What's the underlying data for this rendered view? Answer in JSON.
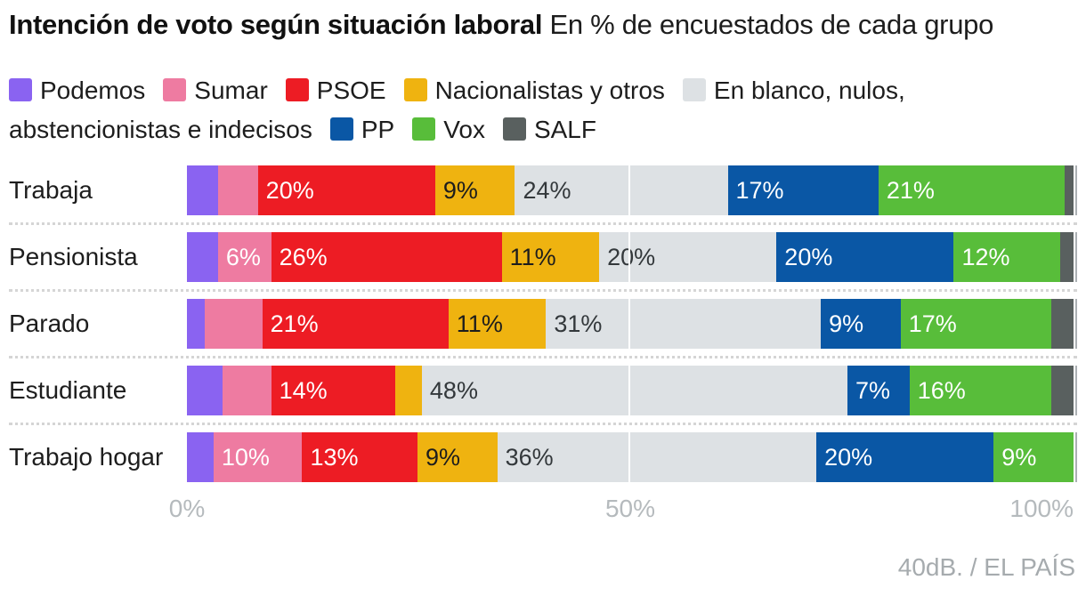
{
  "title": {
    "bold": "Intención de voto según situación laboral",
    "regular": "En % de encuestados de cada grupo"
  },
  "source": "40dB. / EL PAÍS",
  "chart_data": {
    "type": "bar",
    "variant": "horizontal-stacked",
    "title": "Intención de voto según situación laboral",
    "subtitle": "En % de encuestados de cada grupo",
    "xlim": [
      0,
      100
    ],
    "x_ticks": [
      "0%",
      "50%",
      "100%"
    ],
    "legend_position": "top",
    "grid": "white line at 50%, gray edge line at 100%, dotted separators between rows",
    "categories": [
      "Trabaja",
      "Pensionista",
      "Parado",
      "Estudiante",
      "Trabajo hogar"
    ],
    "series": [
      {
        "key": "podemos",
        "name": "Podemos",
        "color": "#8a63f1",
        "label_color": "#ffffff",
        "values": [
          3.5,
          3.5,
          2,
          4,
          3
        ],
        "labels": [
          "",
          "",
          "",
          "",
          ""
        ]
      },
      {
        "key": "sumar",
        "name": "Sumar",
        "color": "#ee7ba1",
        "label_color": "#ffffff",
        "values": [
          4.5,
          6,
          6.5,
          5.5,
          10
        ],
        "labels": [
          "",
          "6%",
          "",
          "",
          "10%"
        ]
      },
      {
        "key": "psoe",
        "name": "PSOE",
        "color": "#ed1c24",
        "label_color": "#ffffff",
        "values": [
          20,
          26,
          21,
          14,
          13
        ],
        "labels": [
          "20%",
          "26%",
          "21%",
          "14%",
          "13%"
        ]
      },
      {
        "key": "nacionalistas",
        "name": "Nacionalistas y otros",
        "color": "#efb310",
        "label_color": "#1d1d1d",
        "values": [
          9,
          11,
          11,
          3,
          9
        ],
        "labels": [
          "9%",
          "11%",
          "11%",
          "",
          "9%"
        ]
      },
      {
        "key": "blanco",
        "name": "En blanco, nulos, abstencionistas e indecisos",
        "color": "#dde1e4",
        "label_color": "#33383b",
        "values": [
          24,
          20,
          31,
          48,
          36
        ],
        "labels": [
          "24%",
          "20%",
          "31%",
          "48%",
          "36%"
        ]
      },
      {
        "key": "pp",
        "name": "PP",
        "color": "#0a57a5",
        "label_color": "#ffffff",
        "values": [
          17,
          20,
          9,
          7,
          20
        ],
        "labels": [
          "17%",
          "20%",
          "9%",
          "7%",
          "20%"
        ]
      },
      {
        "key": "vox",
        "name": "Vox",
        "color": "#58bd3a",
        "label_color": "#ffffff",
        "values": [
          21,
          12,
          17,
          16,
          9
        ],
        "labels": [
          "21%",
          "12%",
          "17%",
          "16%",
          "9%"
        ]
      },
      {
        "key": "salf",
        "name": "SALF",
        "color": "#59605f",
        "label_color": "#ffffff",
        "values": [
          1,
          1.5,
          2.5,
          2.5,
          0
        ],
        "labels": [
          "",
          "",
          "",
          "",
          ""
        ]
      }
    ]
  }
}
